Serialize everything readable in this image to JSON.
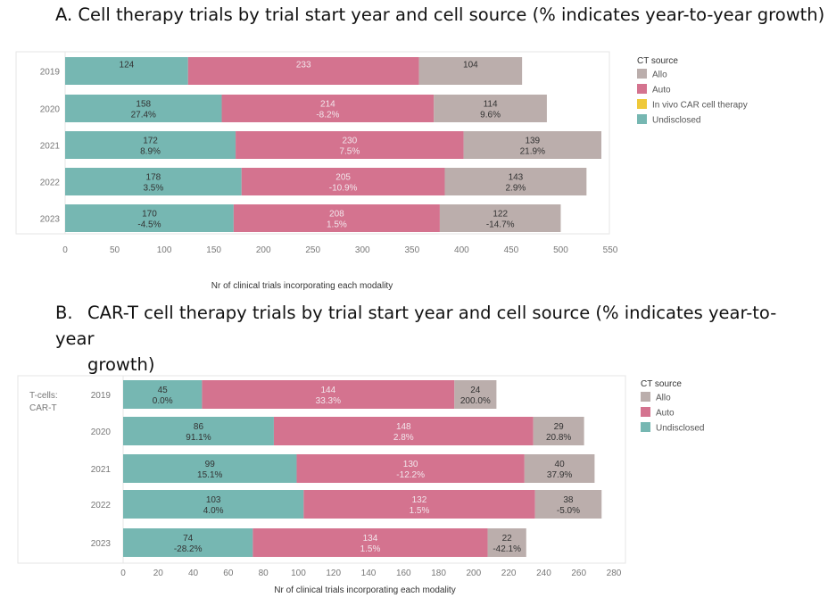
{
  "titles": {
    "a": "A.  Cell therapy trials by trial start year and cell source (% indicates year-to-year growth)",
    "b_prefix": "B.",
    "b_line1": "CAR-T cell therapy trials by trial start year and cell source (% indicates year-to-year",
    "b_line2": "growth)"
  },
  "colors": {
    "Allo": "#bbaeac",
    "Auto": "#d4738f",
    "In vivo CAR cell therapy": "#efc93a",
    "Undisclosed": "#76b7b2"
  },
  "chart_data": [
    {
      "id": "A",
      "type": "bar",
      "orientation": "horizontal",
      "stacked": true,
      "title": "Cell therapy trials by trial start year and cell source (% indicates year-to-year growth)",
      "xlabel": "Nr of clinical trials incorporating each modality",
      "ylabel": "",
      "xlim": [
        0,
        550
      ],
      "xticks": [
        0,
        50,
        100,
        150,
        200,
        250,
        300,
        350,
        400,
        450,
        500,
        550
      ],
      "categories": [
        "2019",
        "2020",
        "2021",
        "2022",
        "2023"
      ],
      "row_header": "",
      "legend_title": "CT source",
      "legend": [
        "Allo",
        "Auto",
        "In vivo CAR cell therapy",
        "Undisclosed"
      ],
      "series": [
        {
          "name": "Undisclosed",
          "values": [
            124,
            158,
            172,
            178,
            170
          ],
          "growth": [
            "",
            "27.4%",
            "8.9%",
            "3.5%",
            "-4.5%"
          ]
        },
        {
          "name": "Auto",
          "values": [
            233,
            214,
            230,
            205,
            208
          ],
          "growth": [
            "",
            "-8.2%",
            "7.5%",
            "-10.9%",
            "1.5%"
          ]
        },
        {
          "name": "Allo",
          "values": [
            104,
            114,
            139,
            143,
            122
          ],
          "growth": [
            "",
            "9.6%",
            "21.9%",
            "2.9%",
            "-14.7%"
          ]
        }
      ]
    },
    {
      "id": "B",
      "type": "bar",
      "orientation": "horizontal",
      "stacked": true,
      "title": "CAR-T cell therapy trials by trial start year and cell source (% indicates year-to-year growth)",
      "xlabel": "Nr of clinical trials incorporating each modality",
      "ylabel": "",
      "xlim": [
        0,
        280
      ],
      "xticks": [
        0,
        20,
        40,
        60,
        80,
        100,
        120,
        140,
        160,
        180,
        200,
        220,
        240,
        260,
        280
      ],
      "categories": [
        "2019",
        "2020",
        "2021",
        "2022",
        "2023"
      ],
      "row_header": [
        "T-cells:",
        "CAR-T"
      ],
      "legend_title": "CT source",
      "legend": [
        "Allo",
        "Auto",
        "Undisclosed"
      ],
      "series": [
        {
          "name": "Undisclosed",
          "values": [
            45,
            86,
            99,
            103,
            74
          ],
          "growth": [
            "0.0%",
            "91.1%",
            "15.1%",
            "4.0%",
            "-28.2%"
          ]
        },
        {
          "name": "Auto",
          "values": [
            144,
            148,
            130,
            132,
            134
          ],
          "growth": [
            "33.3%",
            "2.8%",
            "-12.2%",
            "1.5%",
            "1.5%"
          ]
        },
        {
          "name": "Allo",
          "values": [
            24,
            29,
            40,
            38,
            22
          ],
          "growth": [
            "200.0%",
            "20.8%",
            "37.9%",
            "-5.0%",
            "-42.1%"
          ]
        }
      ]
    }
  ]
}
